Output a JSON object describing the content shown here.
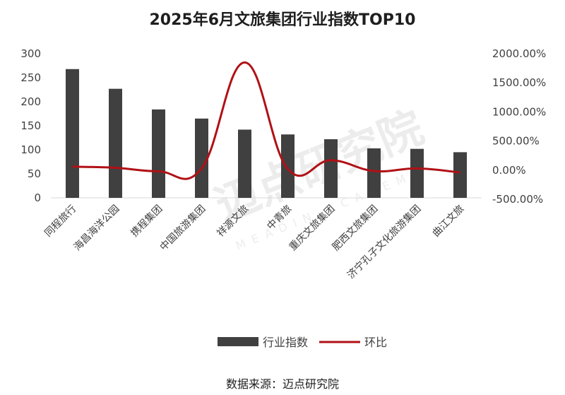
{
  "chart_data": {
    "type": "bar",
    "title": "2025年6月文旅集团行业指数TOP10",
    "categories": [
      "同程旅行",
      "海昌海洋公园",
      "携程集团",
      "中国旅游集团",
      "祥源文旅",
      "中青旅",
      "重庆文旅集团",
      "肥西文旅集团",
      "济宁孔子文化旅游集团",
      "曲江文旅"
    ],
    "series": [
      {
        "name": "行业指数",
        "type": "bar",
        "axis": "left",
        "color": "#404040",
        "values": [
          268,
          227,
          184,
          165,
          142,
          132,
          122,
          103,
          102,
          95
        ]
      },
      {
        "name": "环比",
        "type": "line",
        "axis": "right",
        "color": "#b01116",
        "values": [
          60,
          40,
          -20,
          30,
          1850,
          20,
          170,
          -15,
          30,
          -40
        ]
      }
    ],
    "y_left": {
      "min": 0,
      "max": 300,
      "ticks": [
        "0",
        "50",
        "100",
        "150",
        "200",
        "250",
        "300"
      ]
    },
    "y_right": {
      "min": -500,
      "max": 2000,
      "ticks": [
        "-500.00%",
        "0.00%",
        "500.00%",
        "1000.00%",
        "1500.00%",
        "2000.00%"
      ]
    },
    "legend": {
      "position": "bottom",
      "items": [
        "行业指数",
        "环比"
      ]
    },
    "grid": false
  },
  "source_text": "数据来源：迈点研究院",
  "watermark": {
    "cn": "迈点研究院",
    "en": "MEADIN ACADEMY"
  }
}
